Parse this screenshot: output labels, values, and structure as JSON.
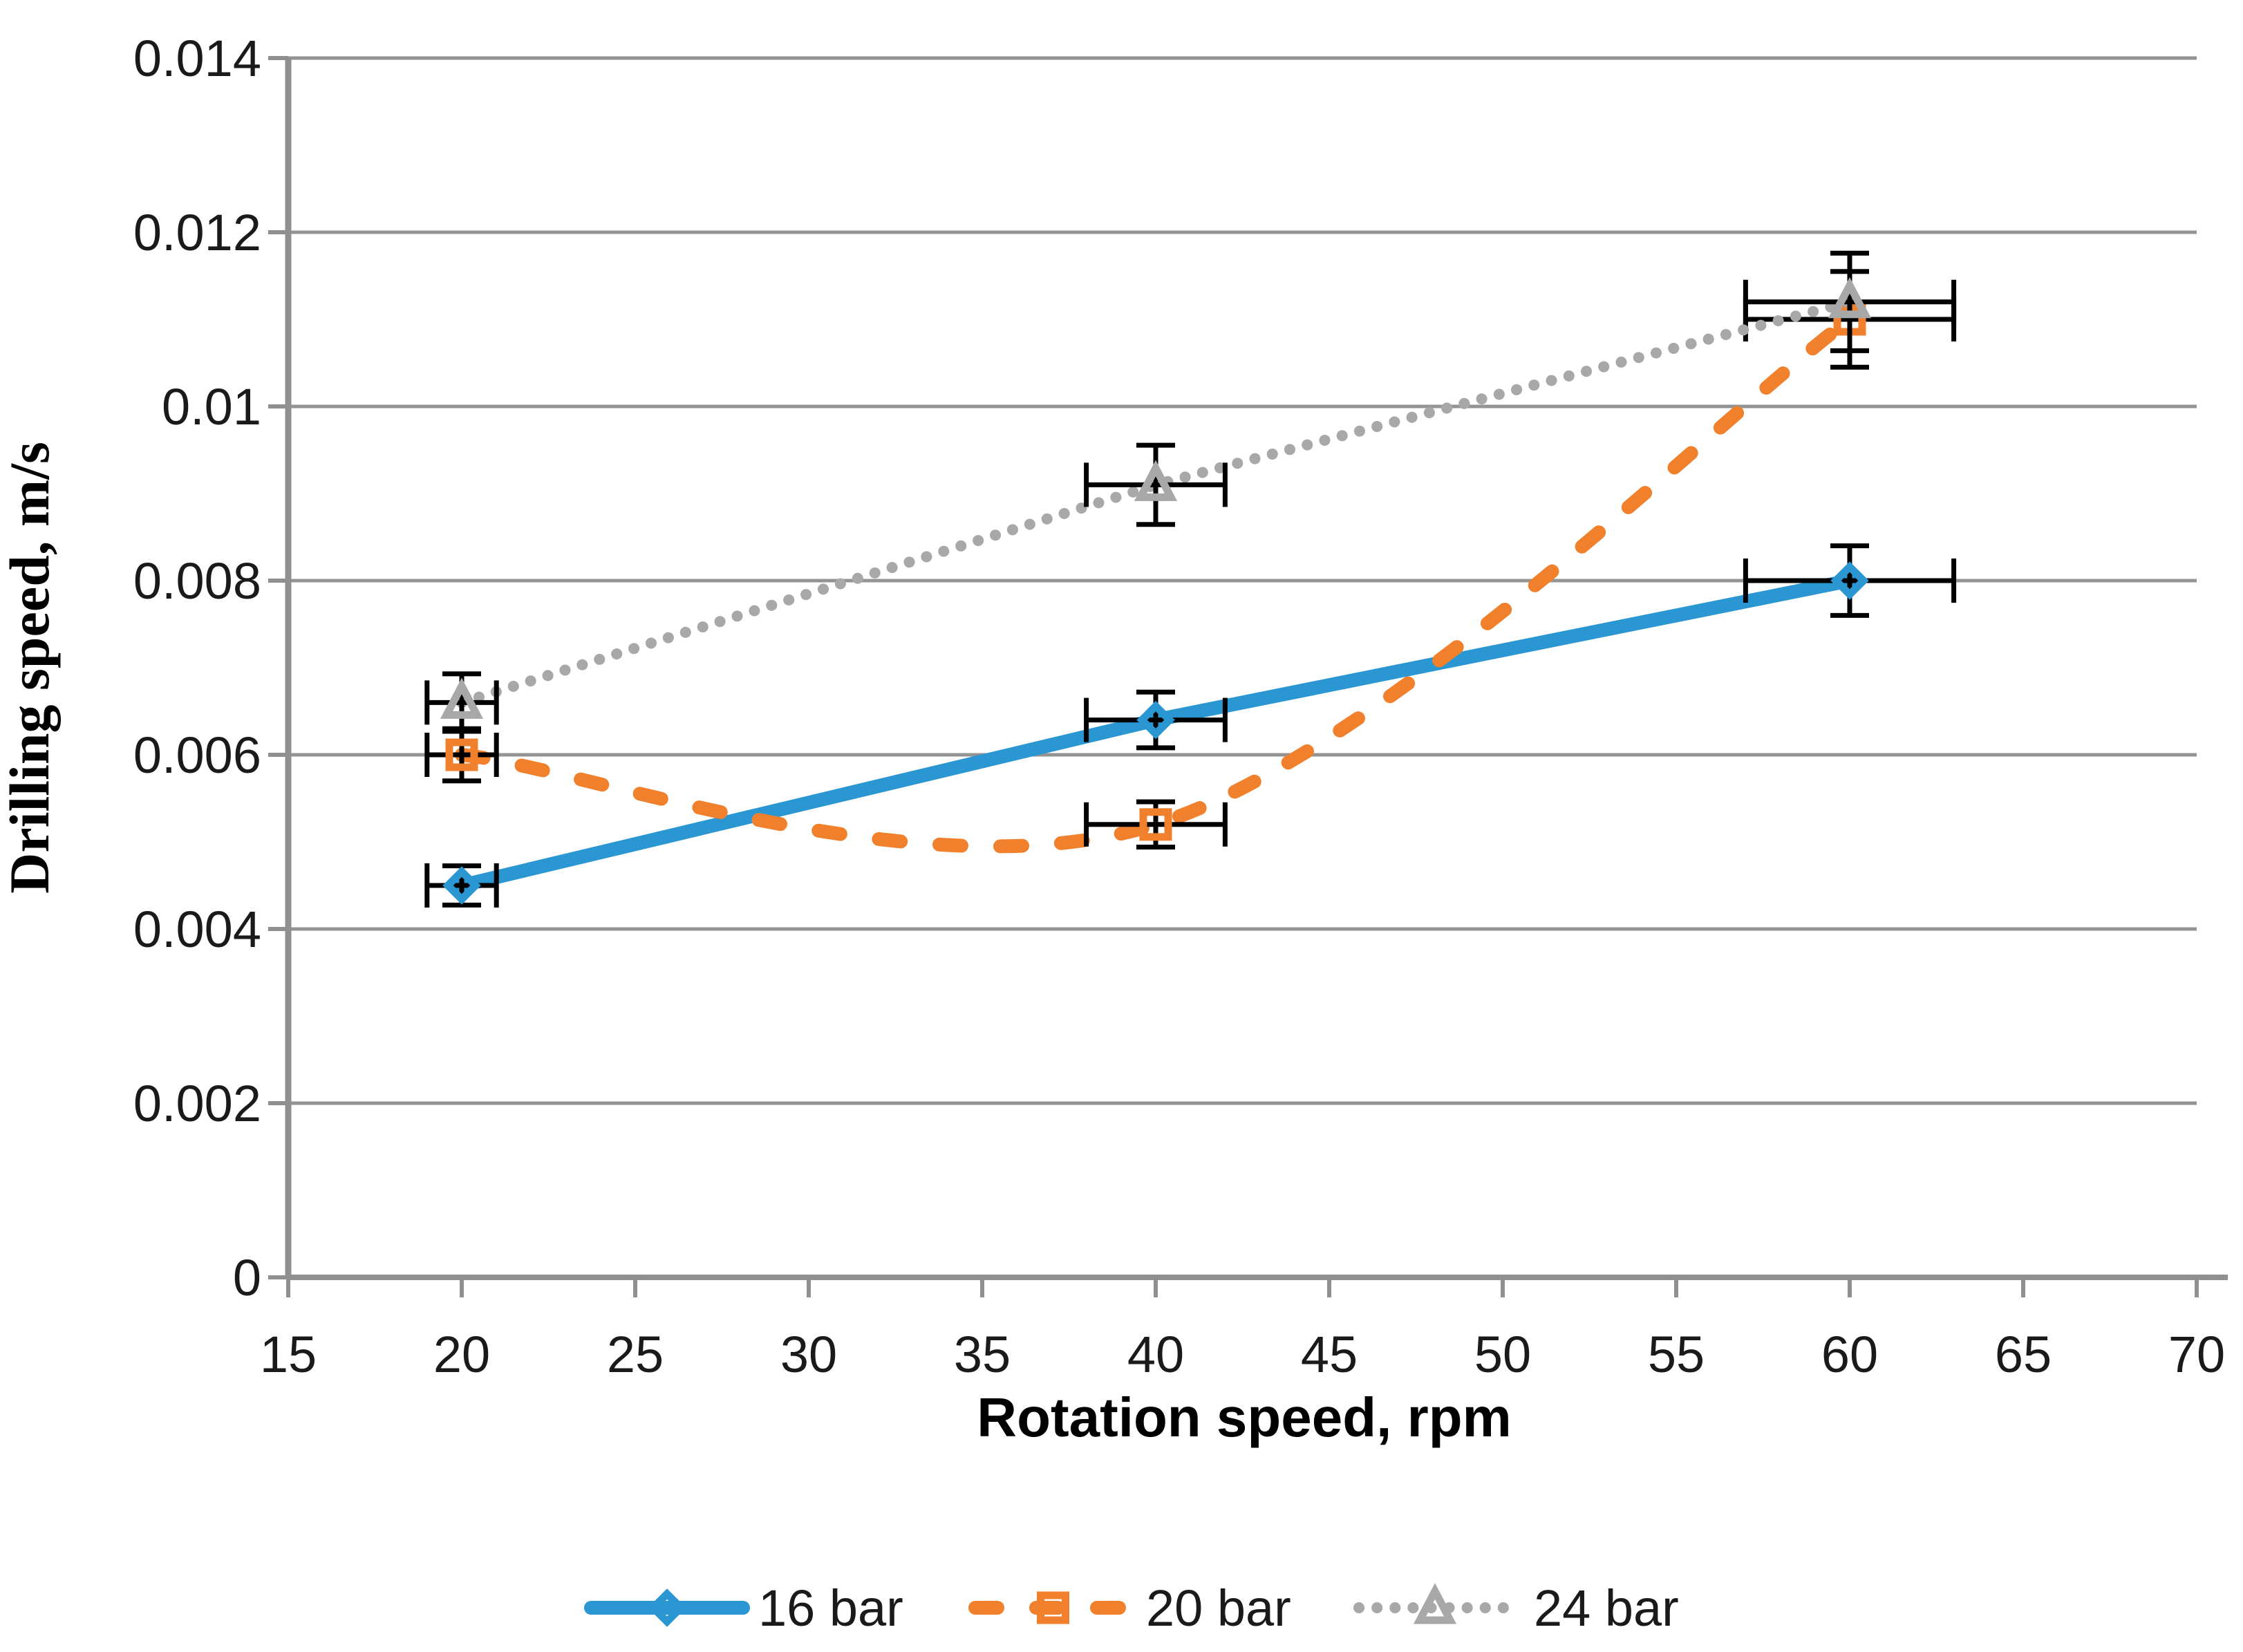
{
  "chart_data": {
    "type": "line",
    "title": "",
    "xlabel": "Rotation speed, rpm",
    "ylabel": "Drilling speed, m/s",
    "xlim": [
      15,
      70
    ],
    "ylim": [
      0,
      0.014
    ],
    "grid": "horizontal",
    "legend_position": "bottom",
    "error_bars": {
      "x_fraction": 0.05,
      "y_fraction": 0.05
    },
    "xticks": [
      {
        "value": 15,
        "label": "15"
      },
      {
        "value": 20,
        "label": "20"
      },
      {
        "value": 25,
        "label": "25"
      },
      {
        "value": 30,
        "label": "30"
      },
      {
        "value": 35,
        "label": "35"
      },
      {
        "value": 40,
        "label": "40"
      },
      {
        "value": 45,
        "label": "45"
      },
      {
        "value": 50,
        "label": "50"
      },
      {
        "value": 55,
        "label": "55"
      },
      {
        "value": 60,
        "label": "60"
      },
      {
        "value": 65,
        "label": "65"
      },
      {
        "value": 70,
        "label": "70"
      }
    ],
    "yticks": [
      {
        "value": 0,
        "label": "0"
      },
      {
        "value": 0.002,
        "label": "0.002"
      },
      {
        "value": 0.004,
        "label": "0.004"
      },
      {
        "value": 0.006,
        "label": "0.006"
      },
      {
        "value": 0.008,
        "label": "0.008"
      },
      {
        "value": 0.01,
        "label": "0.01"
      },
      {
        "value": 0.012,
        "label": "0.012"
      },
      {
        "value": 0.014,
        "label": "0.014"
      }
    ],
    "x": [
      20,
      40,
      60
    ],
    "series": [
      {
        "name": "16 bar",
        "color": "#2A96D2",
        "style": "solid",
        "marker": "diamond",
        "smooth": false,
        "values": [
          0.0045,
          0.0064,
          0.008
        ]
      },
      {
        "name": "20 bar",
        "color": "#F0802C",
        "style": "dashed",
        "marker": "square",
        "smooth": true,
        "values": [
          0.006,
          0.0052,
          0.011
        ]
      },
      {
        "name": "24 bar",
        "color": "#A8A8A8",
        "style": "dotted",
        "marker": "triangle",
        "smooth": false,
        "values": [
          0.0066,
          0.0091,
          0.0112
        ]
      }
    ]
  },
  "colors": {
    "gridline": "#949494",
    "axis_line": "#8F8F8F",
    "error_bar": "#000000",
    "tick_text": "#1A1A1A",
    "background": "#FFFFFF"
  }
}
